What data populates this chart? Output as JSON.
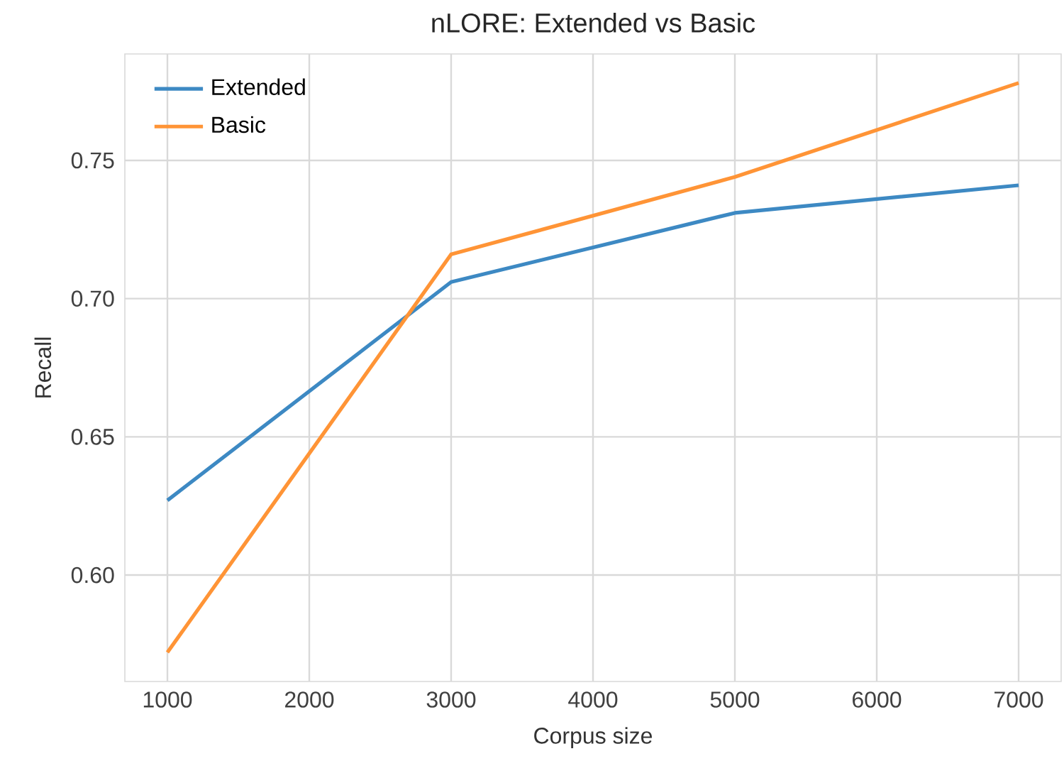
{
  "chart_data": {
    "type": "line",
    "title": "nLORE: Extended vs Basic",
    "xlabel": "Corpus size",
    "ylabel": "Recall",
    "x": [
      1000,
      3000,
      5000,
      7000
    ],
    "series": [
      {
        "name": "Extended",
        "color": "#3d89c3",
        "values": [
          0.627,
          0.706,
          0.731,
          0.741
        ]
      },
      {
        "name": "Basic",
        "color": "#ff9436",
        "values": [
          0.572,
          0.716,
          0.744,
          0.778
        ]
      }
    ],
    "xlim": [
      700,
      7300
    ],
    "ylim": [
      0.5615,
      0.7885
    ],
    "xticks": [
      1000,
      2000,
      3000,
      4000,
      5000,
      6000,
      7000
    ],
    "yticks": [
      {
        "value": 0.6,
        "label": "0.60"
      },
      {
        "value": 0.65,
        "label": "0.65"
      },
      {
        "value": 0.7,
        "label": "0.70"
      },
      {
        "value": 0.75,
        "label": "0.75"
      }
    ],
    "grid": true,
    "legend": "top left",
    "marker": "none",
    "line_style": "solid"
  }
}
